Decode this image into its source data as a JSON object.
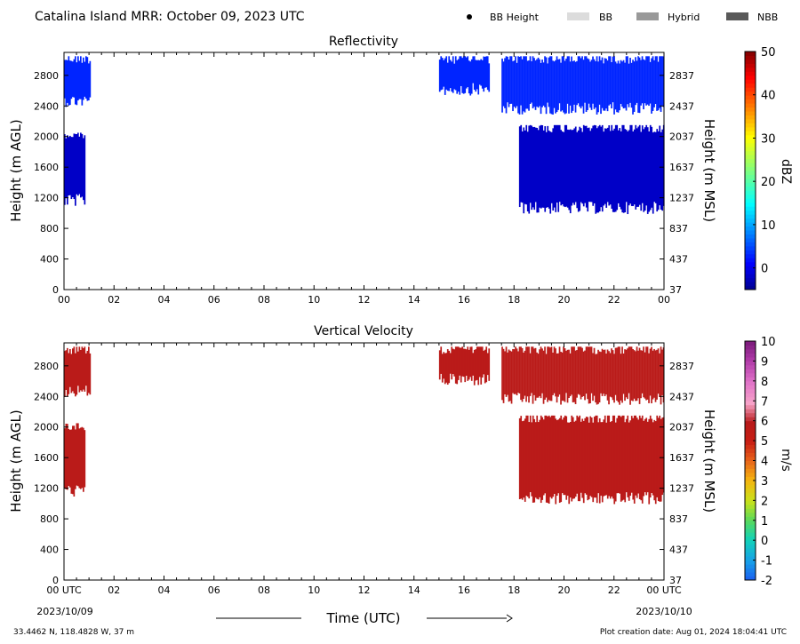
{
  "header": {
    "title": "Catalina Island MRR:  October 09, 2023 UTC",
    "legend": [
      {
        "label": "BB Height",
        "kind": "dot",
        "color": "#000000"
      },
      {
        "label": "BB",
        "kind": "box",
        "color": "#dcdcdc"
      },
      {
        "label": "Hybrid",
        "kind": "box",
        "color": "#999999"
      },
      {
        "label": "NBB",
        "kind": "box",
        "color": "#595959"
      }
    ]
  },
  "footer": {
    "location": "33.4462 N, 118.4828 W, 37 m",
    "creation": "Plot creation date: Aug 01, 2024 18:04:41 UTC",
    "xlabel": "Time (UTC)",
    "start_date": "2023/10/09",
    "end_date": "2023/10/10"
  },
  "chart_data": [
    {
      "type": "heatmap",
      "title": "Reflectivity",
      "ylabel": "Height (m AGL)",
      "ylabel_right": "Height (m MSL)",
      "xlim": [
        0,
        24
      ],
      "ylim": [
        0,
        3100
      ],
      "x_ticks": [
        "00",
        "02",
        "04",
        "06",
        "08",
        "10",
        "12",
        "14",
        "16",
        "18",
        "20",
        "22",
        "00"
      ],
      "y_ticks": [
        0,
        400,
        800,
        1200,
        1600,
        2000,
        2400,
        2800
      ],
      "y_ticks_right": [
        37,
        437,
        837,
        1237,
        1637,
        2037,
        2437,
        2837
      ],
      "colorbar": {
        "label": "dBZ",
        "min": -5,
        "max": 50,
        "ticks": [
          0,
          10,
          20,
          30,
          40,
          50
        ]
      },
      "echo_regions": [
        {
          "x": [
            0.0,
            1.05
          ],
          "y": [
            2500,
            3050
          ],
          "value": 3
        },
        {
          "x": [
            0.0,
            0.85
          ],
          "y": [
            1200,
            2050
          ],
          "value": -2
        },
        {
          "x": [
            15.0,
            17.0
          ],
          "y": [
            2650,
            3050
          ],
          "value": 3
        },
        {
          "x": [
            17.5,
            24.0
          ],
          "y": [
            2400,
            3050
          ],
          "value": 3
        },
        {
          "x": [
            18.2,
            24.0
          ],
          "y": [
            1100,
            2150
          ],
          "value": -2
        }
      ],
      "grid": false
    },
    {
      "type": "heatmap",
      "title": "Vertical Velocity",
      "ylabel": "Height (m AGL)",
      "ylabel_right": "Height (m MSL)",
      "xlim": [
        0,
        24
      ],
      "ylim": [
        0,
        3100
      ],
      "x_ticks": [
        "00 UTC",
        "02",
        "04",
        "06",
        "08",
        "10",
        "12",
        "14",
        "16",
        "18",
        "20",
        "22",
        "00 UTC"
      ],
      "y_ticks": [
        0,
        400,
        800,
        1200,
        1600,
        2000,
        2400,
        2800
      ],
      "y_ticks_right": [
        37,
        437,
        837,
        1237,
        1637,
        2037,
        2437,
        2837
      ],
      "colorbar": {
        "label": "m/s",
        "min": -2,
        "max": 10,
        "ticks": [
          -2,
          -1,
          0,
          1,
          2,
          3,
          4,
          5,
          6,
          7,
          8,
          9,
          10
        ]
      },
      "echo_regions": [
        {
          "x": [
            0.0,
            1.05
          ],
          "y": [
            2500,
            3050
          ],
          "value": 5.8
        },
        {
          "x": [
            0.0,
            0.85
          ],
          "y": [
            1200,
            2050
          ],
          "value": 5.8
        },
        {
          "x": [
            15.0,
            17.0
          ],
          "y": [
            2650,
            3050
          ],
          "value": 5.8
        },
        {
          "x": [
            17.5,
            24.0
          ],
          "y": [
            2400,
            3050
          ],
          "value": 5.8
        },
        {
          "x": [
            18.2,
            24.0
          ],
          "y": [
            1100,
            2150
          ],
          "value": 5.8
        }
      ],
      "grid": false
    }
  ]
}
